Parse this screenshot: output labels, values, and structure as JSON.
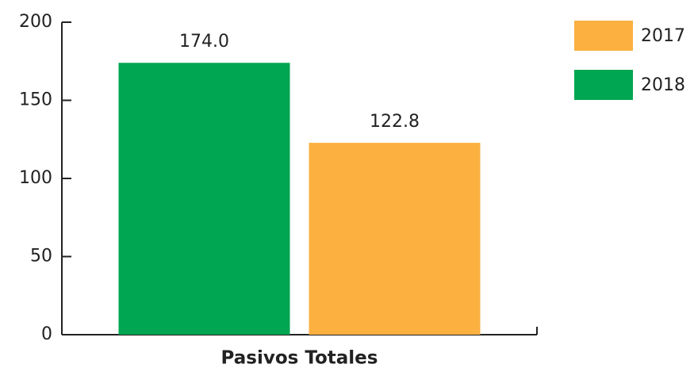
{
  "chart_data": {
    "type": "bar",
    "categories": [
      "Pasivos Totales"
    ],
    "series": [
      {
        "name": "2017",
        "color": "#fbb040",
        "values": [
          122.8
        ],
        "value_labels": [
          "122.8"
        ]
      },
      {
        "name": "2018",
        "color": "#00a651",
        "values": [
          174.0
        ],
        "value_labels": [
          "174.0"
        ]
      }
    ],
    "ylim": [
      0,
      200
    ],
    "yticks": [
      0,
      50,
      100,
      150,
      200
    ],
    "legend": "top-right"
  }
}
